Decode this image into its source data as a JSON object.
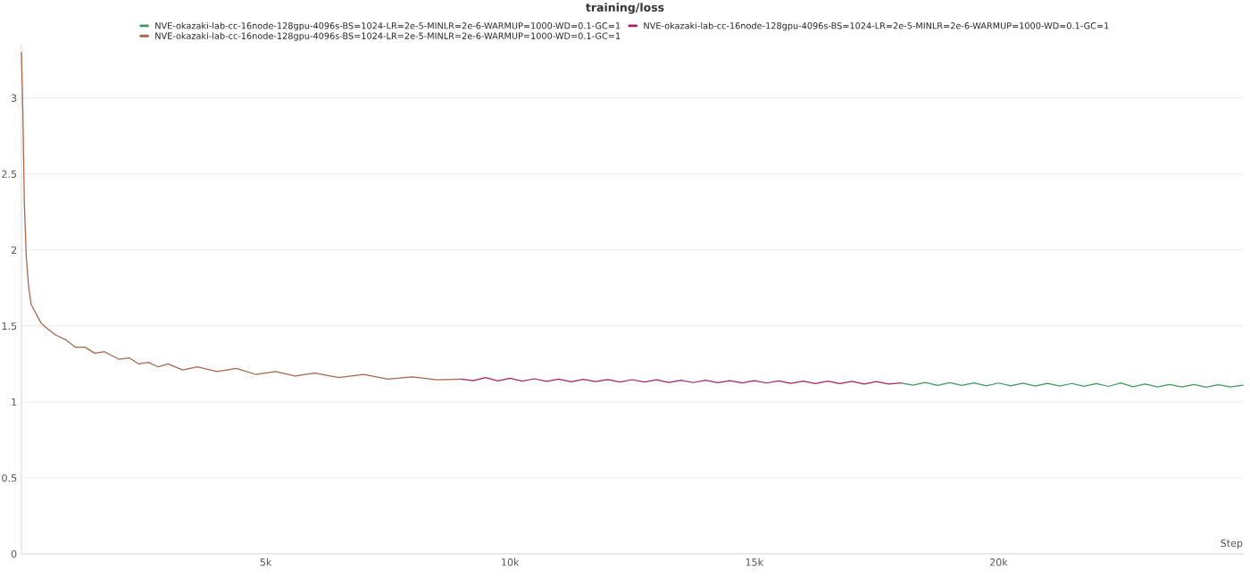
{
  "chart_data": {
    "type": "line",
    "title": "training/loss",
    "xlabel": "Step",
    "xlim": [
      0,
      25000
    ],
    "ylim": [
      0,
      3.35
    ],
    "xticks": [
      {
        "value": 5000,
        "label": "5k"
      },
      {
        "value": 10000,
        "label": "10k"
      },
      {
        "value": 15000,
        "label": "15k"
      },
      {
        "value": 20000,
        "label": "20k"
      }
    ],
    "yticks": [
      0,
      0.5,
      1,
      1.5,
      2,
      2.5,
      3
    ],
    "grid": "y",
    "legend": "top",
    "marker": "none",
    "line_style": "solid",
    "series": [
      {
        "name": "NVE-okazaki-lab-cc-16node-128gpu-4096s-BS=1024-LR=2e-5-MINLR=2e-6-WARMUP=1000-WD=0.1-GC=1",
        "color": "#3d9a5b",
        "x": [
          18000,
          18250,
          18500,
          18750,
          19000,
          19250,
          19500,
          19750,
          20000,
          20250,
          20500,
          20750,
          21000,
          21250,
          21500,
          21750,
          22000,
          22250,
          22500,
          22750,
          23000,
          23250,
          23500,
          23750,
          24000,
          24250,
          24500,
          24750,
          25000
        ],
        "values": [
          1.125,
          1.11,
          1.128,
          1.108,
          1.126,
          1.108,
          1.125,
          1.106,
          1.124,
          1.106,
          1.123,
          1.104,
          1.122,
          1.104,
          1.121,
          1.103,
          1.12,
          1.102,
          1.125,
          1.1,
          1.117,
          1.098,
          1.115,
          1.098,
          1.114,
          1.097,
          1.113,
          1.098,
          1.11
        ]
      },
      {
        "name": "NVE-okazaki-lab-cc-16node-128gpu-4096s-BS=1024-LR=2e-5-MINLR=2e-6-WARMUP=1000-WD=0.1-GC=1",
        "color": "#a8654a",
        "x": [
          0,
          30,
          60,
          100,
          150,
          200,
          300,
          400,
          500,
          700,
          900,
          1100,
          1300,
          1500,
          1700,
          2000,
          2200,
          2400,
          2600,
          2800,
          3000,
          3300,
          3600,
          4000,
          4400,
          4800,
          5200,
          5600,
          6000,
          6500,
          7000,
          7500,
          8000,
          8500,
          9000
        ],
        "values": [
          3.3,
          2.9,
          2.3,
          1.95,
          1.75,
          1.64,
          1.58,
          1.52,
          1.49,
          1.44,
          1.41,
          1.36,
          1.36,
          1.32,
          1.33,
          1.28,
          1.29,
          1.25,
          1.26,
          1.23,
          1.25,
          1.21,
          1.23,
          1.2,
          1.22,
          1.18,
          1.2,
          1.17,
          1.19,
          1.16,
          1.18,
          1.15,
          1.165,
          1.145,
          1.15
        ]
      },
      {
        "name": "NVE-okazaki-lab-cc-16node-128gpu-4096s-BS=1024-LR=2e-5-MINLR=2e-6-WARMUP=1000-WD=0.1-GC=1",
        "color": "#a3216b",
        "x": [
          9000,
          9250,
          9500,
          9750,
          10000,
          10250,
          10500,
          10750,
          11000,
          11250,
          11500,
          11750,
          12000,
          12250,
          12500,
          12750,
          13000,
          13250,
          13500,
          13750,
          14000,
          14250,
          14500,
          14750,
          15000,
          15250,
          15500,
          15750,
          16000,
          16250,
          16500,
          16750,
          17000,
          17250,
          17500,
          17750,
          18000
        ],
        "values": [
          1.15,
          1.14,
          1.16,
          1.138,
          1.155,
          1.136,
          1.152,
          1.135,
          1.15,
          1.132,
          1.148,
          1.133,
          1.147,
          1.13,
          1.146,
          1.13,
          1.145,
          1.128,
          1.143,
          1.127,
          1.142,
          1.126,
          1.14,
          1.125,
          1.14,
          1.124,
          1.138,
          1.122,
          1.137,
          1.121,
          1.136,
          1.12,
          1.135,
          1.118,
          1.134,
          1.118,
          1.125
        ]
      }
    ]
  }
}
